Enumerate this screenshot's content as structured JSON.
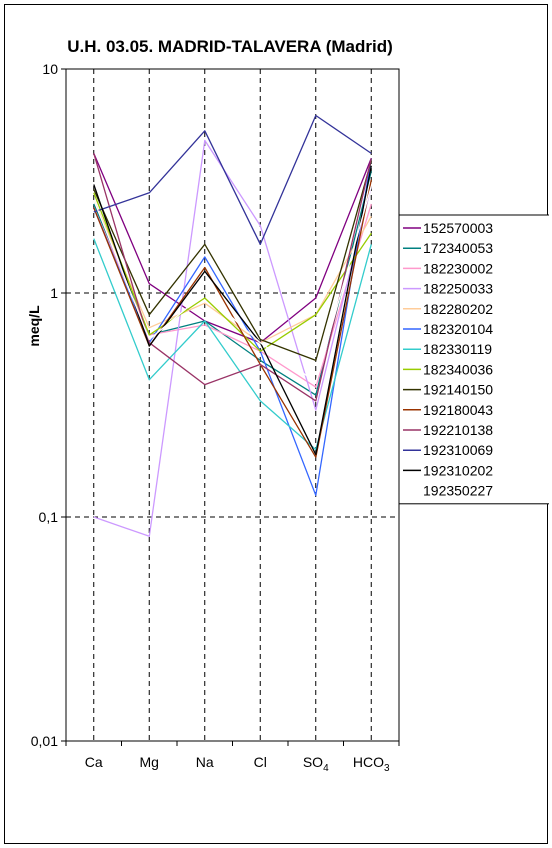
{
  "chart_data": {
    "type": "line",
    "title": "U.H. 03.05. MADRID-TALAVERA (Madrid)",
    "xlabel": "",
    "ylabel": "meq/L",
    "y_scale": "log",
    "ylim": [
      0.01,
      10
    ],
    "y_ticks": [
      {
        "value": 10,
        "label": "10"
      },
      {
        "value": 1,
        "label": "1"
      },
      {
        "value": 0.1,
        "label": "0,1"
      },
      {
        "value": 0.01,
        "label": "0,01"
      }
    ],
    "categories": [
      {
        "main": "Ca",
        "sub": ""
      },
      {
        "main": "Mg",
        "sub": ""
      },
      {
        "main": "Na",
        "sub": ""
      },
      {
        "main": "Cl",
        "sub": ""
      },
      {
        "main": "SO",
        "sub": "4"
      },
      {
        "main": "HCO",
        "sub": "3"
      }
    ],
    "grid": "dashed",
    "legend_position": "right",
    "series": [
      {
        "name": "152570003",
        "color": "#800080",
        "values": [
          4.2,
          1.1,
          0.75,
          0.6,
          0.95,
          4.0
        ]
      },
      {
        "name": "172340053",
        "color": "#008080",
        "values": [
          2.5,
          0.65,
          0.75,
          0.5,
          0.35,
          3.5
        ]
      },
      {
        "name": "182230002",
        "color": "#FF99CC",
        "values": [
          2.4,
          0.65,
          0.72,
          0.55,
          0.38,
          2.5
        ]
      },
      {
        "name": "182250033",
        "color": "#CC99FF",
        "values": [
          0.1,
          0.082,
          4.8,
          2.0,
          0.3,
          3.0
        ]
      },
      {
        "name": "182280202",
        "color": "#FFCC99",
        "values": [
          2.6,
          0.7,
          0.9,
          0.6,
          0.8,
          2.2
        ]
      },
      {
        "name": "182320104",
        "color": "#3366FF",
        "values": [
          2.4,
          0.6,
          1.45,
          0.55,
          0.125,
          4.0
        ]
      },
      {
        "name": "182330119",
        "color": "#33CCCC",
        "values": [
          1.75,
          0.41,
          0.75,
          0.33,
          0.2,
          1.65
        ]
      },
      {
        "name": "182340036",
        "color": "#99CC00",
        "values": [
          2.8,
          0.65,
          0.95,
          0.55,
          0.8,
          1.85
        ]
      },
      {
        "name": "192140150",
        "color": "#333300",
        "values": [
          2.9,
          0.8,
          1.65,
          0.62,
          0.5,
          3.9
        ]
      },
      {
        "name": "192180043",
        "color": "#993300",
        "values": [
          2.4,
          0.58,
          1.3,
          0.48,
          0.185,
          3.2
        ]
      },
      {
        "name": "192210138",
        "color": "#993366",
        "values": [
          4.2,
          0.6,
          0.39,
          0.48,
          0.33,
          4.0
        ]
      },
      {
        "name": "192310069",
        "color": "#333399",
        "values": [
          2.3,
          2.8,
          5.3,
          1.65,
          6.2,
          4.2
        ]
      },
      {
        "name": "192310202",
        "color": "#000000",
        "values": [
          3.05,
          0.58,
          1.25,
          0.6,
          0.19,
          3.7
        ]
      },
      {
        "name": "192350227",
        "color": "#FFFFFF",
        "values": [
          2.6,
          0.62,
          1.0,
          0.6,
          0.4,
          3.0
        ]
      }
    ]
  }
}
